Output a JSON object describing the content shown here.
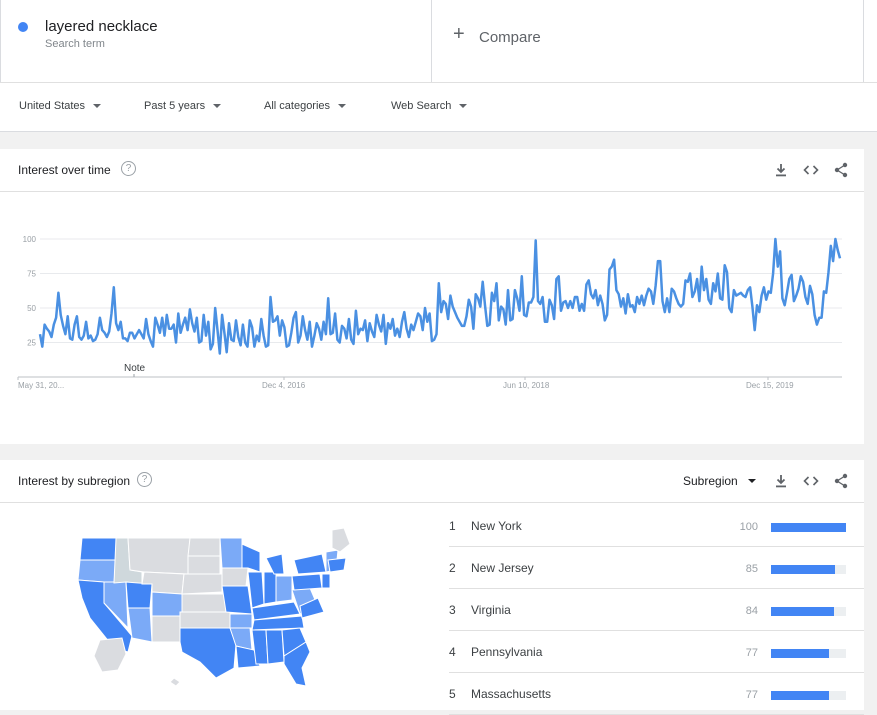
{
  "search": {
    "term": "layered necklace",
    "term_type": "Search term",
    "term_color": "#4285f4",
    "compare_label": "Compare"
  },
  "filters": [
    {
      "label": "United States"
    },
    {
      "label": "Past 5 years"
    },
    {
      "label": "All categories"
    },
    {
      "label": "Web Search"
    }
  ],
  "interest_over_time": {
    "title": "Interest over time",
    "help": "?",
    "note_label": "Note",
    "icons": [
      "download-icon",
      "embed-icon",
      "share-icon"
    ]
  },
  "chart_data": {
    "type": "line",
    "title": "Interest over time",
    "xlabel": "",
    "ylabel": "",
    "ylim": [
      0,
      100
    ],
    "yticks": [
      25,
      50,
      75,
      100
    ],
    "xtick_labels": [
      "May 31, 20...",
      "Dec 4, 2016",
      "Jun 10, 2018",
      "Dec 15, 2019"
    ],
    "line_color": "#4a90e2",
    "grid": true,
    "series": [
      {
        "values": [
          31,
          22,
          38,
          35,
          33,
          29,
          38,
          43,
          61,
          45,
          37,
          31,
          44,
          28,
          27,
          38,
          44,
          29,
          27,
          30,
          40,
          28,
          30,
          26,
          27,
          31,
          43,
          34,
          32,
          29,
          33,
          46,
          65,
          39,
          34,
          40,
          28,
          28,
          26,
          32,
          32,
          28,
          31,
          34,
          31,
          28,
          42,
          31,
          26,
          22,
          43,
          38,
          32,
          43,
          30,
          45,
          35,
          35,
          38,
          25,
          46,
          32,
          38,
          43,
          34,
          49,
          39,
          33,
          43,
          25,
          26,
          45,
          30,
          40,
          20,
          24,
          50,
          34,
          17,
          45,
          32,
          18,
          39,
          27,
          26,
          41,
          29,
          23,
          38,
          25,
          22,
          41,
          36,
          22,
          30,
          26,
          42,
          30,
          22,
          23,
          58,
          40,
          41,
          44,
          30,
          41,
          36,
          22,
          23,
          32,
          43,
          47,
          25,
          30,
          44,
          34,
          27,
          40,
          22,
          30,
          39,
          35,
          27,
          40,
          31,
          57,
          31,
          32,
          46,
          27,
          25,
          37,
          35,
          28,
          42,
          27,
          24,
          48,
          31,
          35,
          34,
          41,
          26,
          39,
          33,
          29,
          45,
          38,
          33,
          45,
          24,
          39,
          35,
          42,
          30,
          35,
          29,
          40,
          47,
          35,
          29,
          38,
          34,
          40,
          46,
          44,
          34,
          50,
          40,
          46,
          26,
          27,
          31,
          68,
          47,
          55,
          53,
          42,
          59,
          51,
          47,
          43,
          40,
          37,
          37,
          44,
          56,
          51,
          35,
          60,
          57,
          51,
          69,
          52,
          37,
          38,
          61,
          55,
          68,
          41,
          51,
          49,
          38,
          63,
          41,
          42,
          63,
          57,
          48,
          73,
          45,
          44,
          54,
          54,
          58,
          99,
          55,
          53,
          58,
          40,
          40,
          56,
          52,
          42,
          71,
          73,
          48,
          54,
          55,
          50,
          55,
          50,
          58,
          58,
          48,
          53,
          48,
          67,
          70,
          60,
          57,
          63,
          52,
          59,
          53,
          41,
          45,
          78,
          80,
          85,
          63,
          60,
          51,
          57,
          46,
          60,
          51,
          52,
          47,
          58,
          53,
          59,
          52,
          59,
          64,
          62,
          53,
          66,
          84,
          84,
          55,
          47,
          57,
          47,
          64,
          62,
          57,
          53,
          51,
          53,
          70,
          69,
          75,
          58,
          62,
          71,
          55,
          80,
          63,
          71,
          56,
          53,
          68,
          62,
          75,
          57,
          56,
          81,
          76,
          50,
          47,
          63,
          59,
          60,
          61,
          59,
          58,
          63,
          65,
          51,
          34,
          52,
          47,
          59,
          65,
          56,
          62,
          61,
          75,
          100,
          80,
          91,
          57,
          52,
          61,
          71,
          74,
          55,
          59,
          64,
          73,
          69,
          58,
          53,
          66,
          60,
          45,
          38,
          43,
          43,
          62,
          61,
          76,
          95,
          84,
          100,
          92,
          86
        ]
      }
    ]
  },
  "interest_by_subregion": {
    "title": "Interest by subregion",
    "help": "?",
    "selector_label": "Subregion",
    "icons": [
      "download-icon",
      "embed-icon",
      "share-icon"
    ],
    "bar_color": "#4285f4",
    "rankings": [
      {
        "rank": "1",
        "name": "New York",
        "value": "100",
        "score": 100
      },
      {
        "rank": "2",
        "name": "New Jersey",
        "value": "85",
        "score": 85
      },
      {
        "rank": "3",
        "name": "Virginia",
        "value": "84",
        "score": 84
      },
      {
        "rank": "4",
        "name": "Pennsylvania",
        "value": "77",
        "score": 77
      },
      {
        "rank": "5",
        "name": "Massachusetts",
        "value": "77",
        "score": 77
      }
    ]
  }
}
